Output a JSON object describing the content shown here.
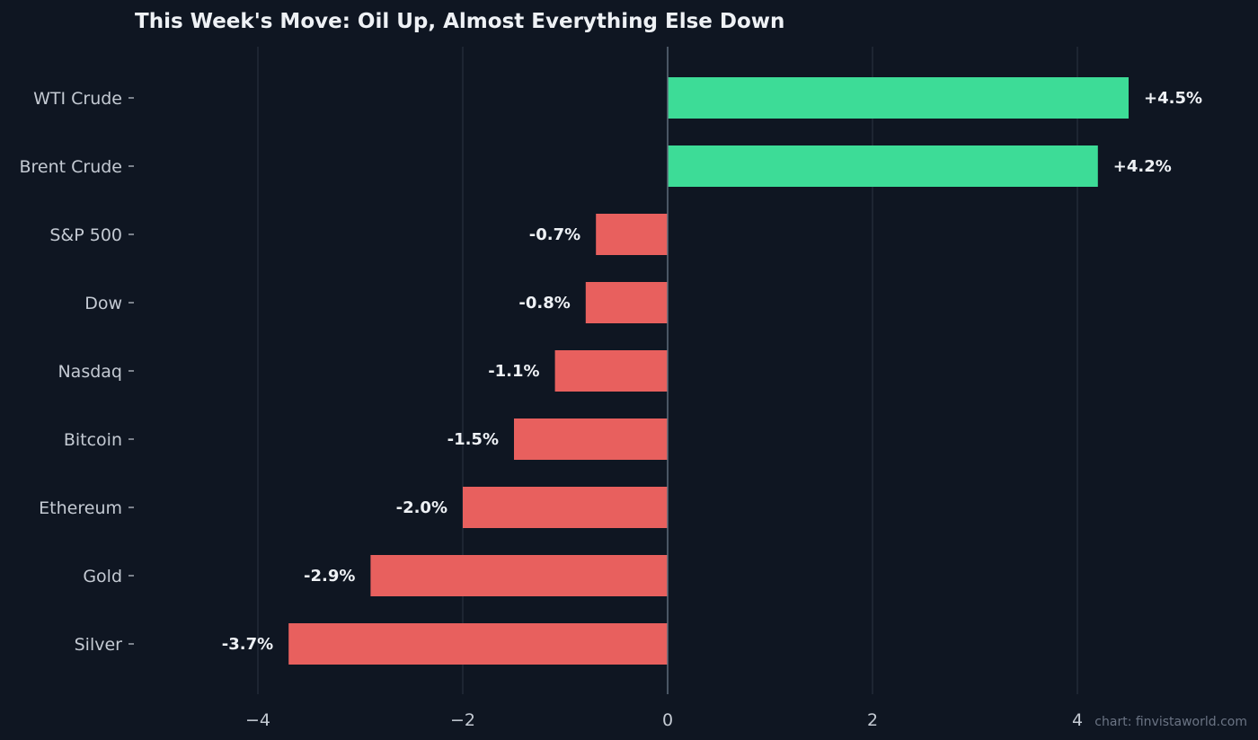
{
  "chart_data": {
    "type": "bar",
    "orientation": "horizontal",
    "title": "This Week's Move: Oil Up, Almost Everything Else Down",
    "xlabel": "",
    "ylabel": "",
    "categories": [
      "WTI Crude",
      "Brent Crude",
      "S&P 500",
      "Dow",
      "Nasdaq",
      "Bitcoin",
      "Ethereum",
      "Gold",
      "Silver"
    ],
    "values": [
      4.5,
      4.2,
      -0.7,
      -0.8,
      -1.1,
      -1.5,
      -2.0,
      -2.9,
      -3.7
    ],
    "value_labels": [
      "+4.5%",
      "+4.2%",
      "-0.7%",
      "-0.8%",
      "-1.1%",
      "-1.5%",
      "-2.0%",
      "-2.9%",
      "-3.7%"
    ],
    "xlim": [
      -4.5,
      4.6
    ],
    "xticks": [
      -4,
      -2,
      0,
      2,
      4
    ],
    "xtick_labels": [
      "−4",
      "−2",
      "0",
      "2",
      "4"
    ],
    "grid": "vertical",
    "colors": {
      "background": "#0f1622",
      "positive": "#3ddc97",
      "negative": "#e8605e",
      "grid": "#2b3442",
      "zero_line": "#5f6b7a"
    }
  },
  "credit": "chart: finvistaworld.com"
}
